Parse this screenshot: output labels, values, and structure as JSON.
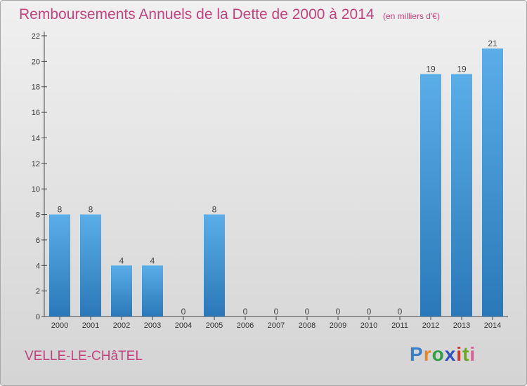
{
  "chart_data": {
    "type": "bar",
    "title": "Remboursements Annuels de la Dette de 2000 à 2014",
    "unit_note": "(en milliers d'€)",
    "categories": [
      "2000",
      "2001",
      "2002",
      "2003",
      "2004",
      "2005",
      "2006",
      "2007",
      "2008",
      "2009",
      "2010",
      "2011",
      "2012",
      "2013",
      "2014"
    ],
    "values": [
      8,
      8,
      4,
      4,
      0,
      8,
      0,
      0,
      0,
      0,
      0,
      0,
      19,
      19,
      21
    ],
    "value_labels": [
      "8",
      "8",
      "4",
      "4",
      "0",
      "8",
      "0",
      "0",
      "0",
      "0",
      "0",
      "0",
      "19",
      "19",
      "21"
    ],
    "ylim": [
      0,
      22
    ],
    "yticks": [
      0,
      2,
      4,
      6,
      8,
      10,
      12,
      14,
      16,
      18,
      20,
      22
    ],
    "ytick_labels": [
      "0",
      "2",
      "4",
      "6",
      "8",
      "10",
      "12",
      "14",
      "16",
      "18",
      "20",
      "22"
    ],
    "xlabel": "",
    "ylabel": "",
    "grid": false,
    "bar_color": "#3a8fd0"
  },
  "commune": "VELLE-LE-CHâTEL",
  "logo": {
    "letters": [
      "P",
      "r",
      "o",
      "x",
      "i",
      "t",
      "i"
    ],
    "colors": [
      "#3a7fc8",
      "#e8872a",
      "#2f9e44",
      "#2f4fbf",
      "#d9342b",
      "#6aa820",
      "#e05a9a"
    ]
  }
}
